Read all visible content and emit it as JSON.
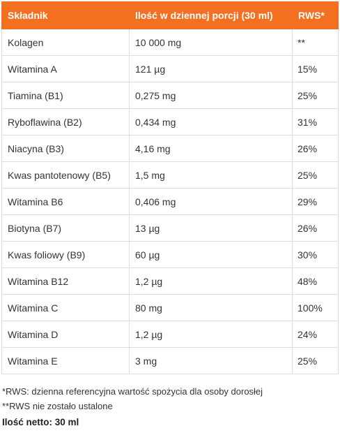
{
  "table": {
    "headers": {
      "ingredient": "Składnik",
      "amount": "Ilość w dziennej porcji (30 ml)",
      "rws": "RWS*"
    },
    "rows": [
      {
        "ingredient": "Kolagen",
        "amount": "10 000 mg",
        "rws": "**"
      },
      {
        "ingredient": "Witamina A",
        "amount": "121 µg",
        "rws": "15%"
      },
      {
        "ingredient": "Tiamina (B1)",
        "amount": "0,275 mg",
        "rws": "25%"
      },
      {
        "ingredient": "Ryboflawina (B2)",
        "amount": "0,434 mg",
        "rws": "31%"
      },
      {
        "ingredient": "Niacyna (B3)",
        "amount": "4,16 mg",
        "rws": "26%"
      },
      {
        "ingredient": "Kwas pantotenowy (B5)",
        "amount": "1,5 mg",
        "rws": "25%"
      },
      {
        "ingredient": "Witamina B6",
        "amount": "0,406 mg",
        "rws": "29%"
      },
      {
        "ingredient": "Biotyna (B7)",
        "amount": "13 µg",
        "rws": "26%"
      },
      {
        "ingredient": "Kwas foliowy (B9)",
        "amount": "60 µg",
        "rws": "30%"
      },
      {
        "ingredient": "Witamina B12",
        "amount": "1,2 µg",
        "rws": "48%"
      },
      {
        "ingredient": "Witamina C",
        "amount": "80 mg",
        "rws": "100%"
      },
      {
        "ingredient": "Witamina D",
        "amount": "1,2 µg",
        "rws": "24%"
      },
      {
        "ingredient": "Witamina E",
        "amount": "3 mg",
        "rws": "25%"
      }
    ]
  },
  "footnotes": {
    "rws_note": "*RWS: dzienna referencyjna wartość spożycia dla osoby dorosłej",
    "rws_not_set": "**RWS nie zostało ustalone",
    "net_amount": "Ilość netto: 30 ml"
  },
  "colors": {
    "header_bg": "#f37021",
    "header_text": "#ffffff",
    "border": "#dddddd"
  }
}
